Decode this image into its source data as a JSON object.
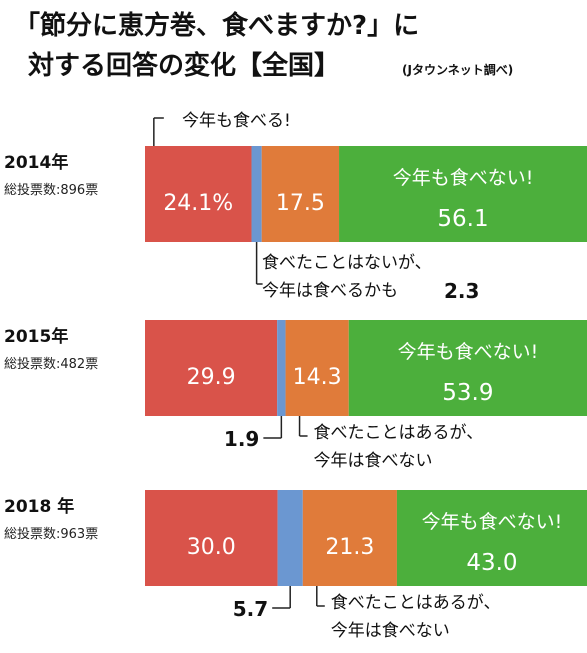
{
  "title_lines": [
    "「節分に恵方巻、食べますか?」に",
    "対する回答の変化【全国】"
  ],
  "source": "(Jタウンネット調べ)",
  "colors": {
    "eat_this_year": "#d9534a",
    "never_but_maybe": "#6b97d1",
    "ate_before_not_this_year": "#e07b3a",
    "not_this_year": "#4caf3c"
  },
  "chart_data": {
    "type": "bar",
    "stacked": true,
    "orientation": "horizontal",
    "xlim": [
      0,
      100
    ],
    "unit": "%",
    "categories": [
      "2014年",
      "2015年",
      "2018 年"
    ],
    "vote_labels": [
      "総投票数:896票",
      "総投票数:482票",
      "総投票数:963票"
    ],
    "series": [
      {
        "name": "今年も食べる!",
        "values": [
          24.1,
          29.9,
          30.0
        ],
        "labels": [
          "24.1%",
          "29.9",
          "30.0"
        ]
      },
      {
        "name": "食べたことはないが、今年は食べるかも",
        "values": [
          2.3,
          1.9,
          5.7
        ],
        "labels": [
          "2.3",
          "1.9",
          "5.7"
        ]
      },
      {
        "name": "食べたことはあるが、今年は食べない",
        "values": [
          17.5,
          14.3,
          21.3
        ],
        "labels": [
          "17.5",
          "14.3",
          "21.3"
        ]
      },
      {
        "name": "今年も食べない!",
        "values": [
          56.1,
          53.9,
          43.0
        ],
        "labels": [
          "56.1",
          "53.9",
          "43.0"
        ]
      }
    ],
    "annotations": {
      "eat_label": "今年も食べる!",
      "maybe_line1": "食べたことはないが、",
      "maybe_line2": "今年は食べるかも",
      "ate_line1": "食べたことはあるが、",
      "ate_line2": "今年は食べない"
    }
  }
}
